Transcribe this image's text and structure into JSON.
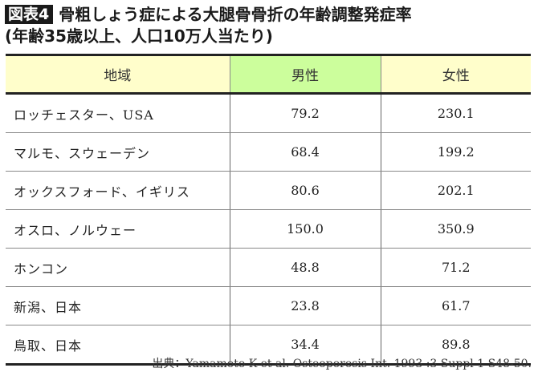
{
  "title": {
    "badge": "図表4",
    "main": "骨粗しょう症による大腿骨骨折の年齢調整発症率",
    "subtitle": "(年齢35歳以上、人口10万人当たり)"
  },
  "table": {
    "headers": [
      "地域",
      "男性",
      "女性"
    ],
    "header_colors": {
      "region": "#fffecb",
      "male": "#ccfe9c",
      "female": "#fffecb"
    },
    "rows": [
      {
        "region": "ロッチェスター、USA",
        "male": "79.2",
        "female": "230.1"
      },
      {
        "region": "マルモ、スウェーデン",
        "male": "68.4",
        "female": "199.2"
      },
      {
        "region": "オックスフォード、イギリス",
        "male": "80.6",
        "female": "202.1"
      },
      {
        "region": "オスロ、ノルウェー",
        "male": "150.0",
        "female": "350.9"
      },
      {
        "region": "ホンコン",
        "male": "48.8",
        "female": "71.2"
      },
      {
        "region": "新潟、日本",
        "male": "23.8",
        "female": "61.7"
      },
      {
        "region": "鳥取、日本",
        "male": "34.4",
        "female": "89.8"
      }
    ]
  },
  "source": "出典：Yamamoto K et al. Osteoporosis Int. 1993 :3 Suppl 1 S48-50."
}
